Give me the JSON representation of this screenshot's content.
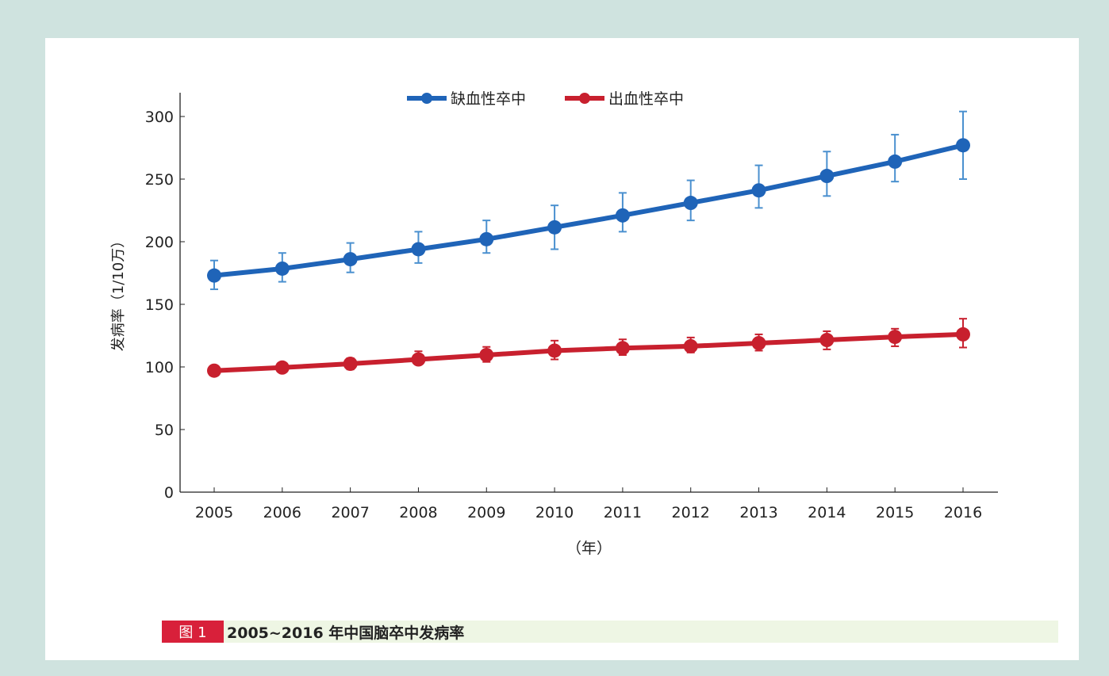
{
  "chart_data": {
    "type": "line",
    "title": "",
    "xlabel": "（年）",
    "ylabel": "发病率（1/10万）",
    "ylim": [
      0,
      320
    ],
    "yticks": [
      0,
      50,
      100,
      150,
      200,
      250,
      300
    ],
    "categories": [
      "2005",
      "2006",
      "2007",
      "2008",
      "2009",
      "2010",
      "2011",
      "2012",
      "2013",
      "2014",
      "2015",
      "2016"
    ],
    "legend_position": "top-center",
    "grid": false,
    "error_bars": true,
    "series": [
      {
        "name": "缺血性卒中",
        "color": "#1f64b8",
        "errcolor": "#4a90cf",
        "values": [
          173,
          178.5,
          186,
          194,
          202,
          211.5,
          221,
          231,
          241,
          252.5,
          264,
          277
        ],
        "upper": [
          185,
          191,
          199,
          208,
          217,
          229,
          239,
          249,
          261,
          272,
          285.5,
          304
        ],
        "lower": [
          162,
          168,
          175.5,
          183,
          191,
          194,
          208,
          217,
          227,
          236.5,
          248,
          250
        ]
      },
      {
        "name": "出血性卒中",
        "color": "#c8202e",
        "errcolor": "#c8202e",
        "values": [
          97,
          99.5,
          102.5,
          106,
          109.5,
          113,
          115,
          116.5,
          119,
          121.5,
          124,
          126
        ],
        "upper": [
          100,
          103.5,
          107,
          112.5,
          116,
          121,
          122,
          123.5,
          126,
          128.5,
          130.5,
          138.5
        ],
        "lower": [
          94,
          96,
          98,
          102,
          104,
          106,
          109.5,
          111.5,
          113,
          114,
          116.5,
          115.5
        ]
      }
    ]
  },
  "caption": {
    "label": "图 1",
    "text": "2005~2016 年中国脑卒中发病率"
  }
}
